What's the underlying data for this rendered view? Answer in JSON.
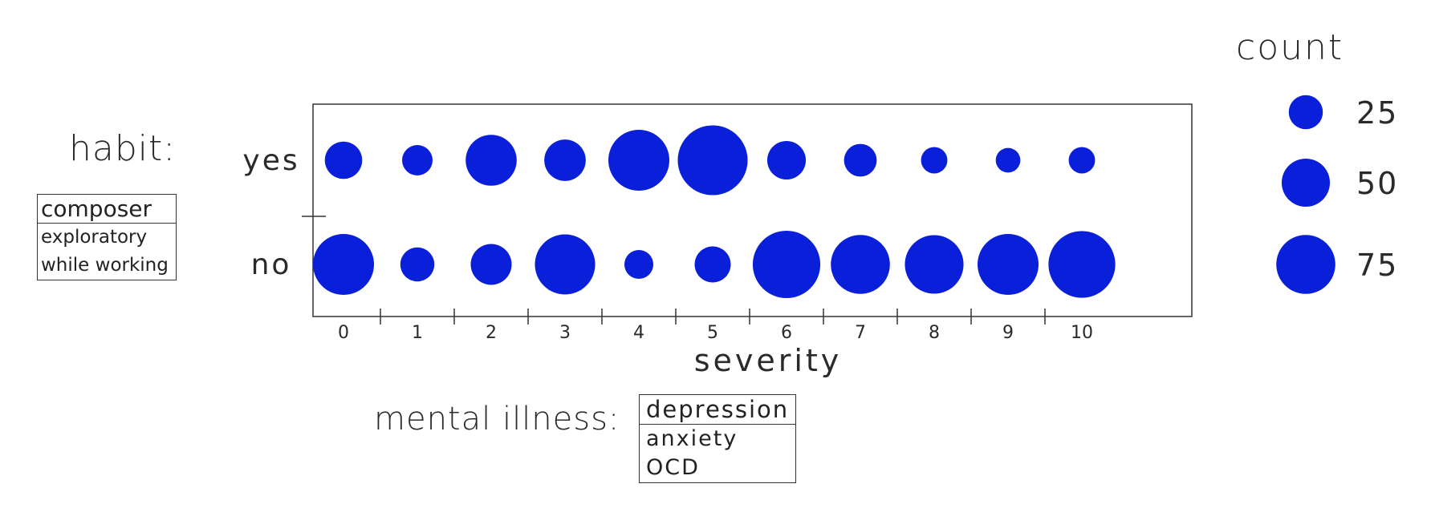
{
  "controls": {
    "habit": {
      "label": "habit:",
      "options": [
        "composer",
        "exploratory",
        "while working"
      ],
      "selected": "composer"
    },
    "mental_illness": {
      "label": "mental illness:",
      "options": [
        "depression",
        "anxiety",
        "OCD"
      ],
      "selected": "depression"
    }
  },
  "legend": {
    "title": "count",
    "sizes": [
      25,
      50,
      75
    ]
  },
  "chart_data": {
    "type": "scatter",
    "xlabel": "severity",
    "ylabel": "",
    "x": [
      0,
      1,
      2,
      3,
      4,
      5,
      6,
      7,
      8,
      9,
      10
    ],
    "y_categories": [
      "yes",
      "no"
    ],
    "size_label": "count",
    "series": [
      {
        "name": "yes",
        "values": [
          30,
          20,
          56,
          37,
          80,
          105,
          32,
          23,
          15,
          13,
          15
        ]
      },
      {
        "name": "no",
        "values": [
          80,
          25,
          36,
          78,
          18,
          28,
          98,
          75,
          74,
          80,
          96
        ]
      }
    ],
    "color": "#0a1fd9"
  }
}
